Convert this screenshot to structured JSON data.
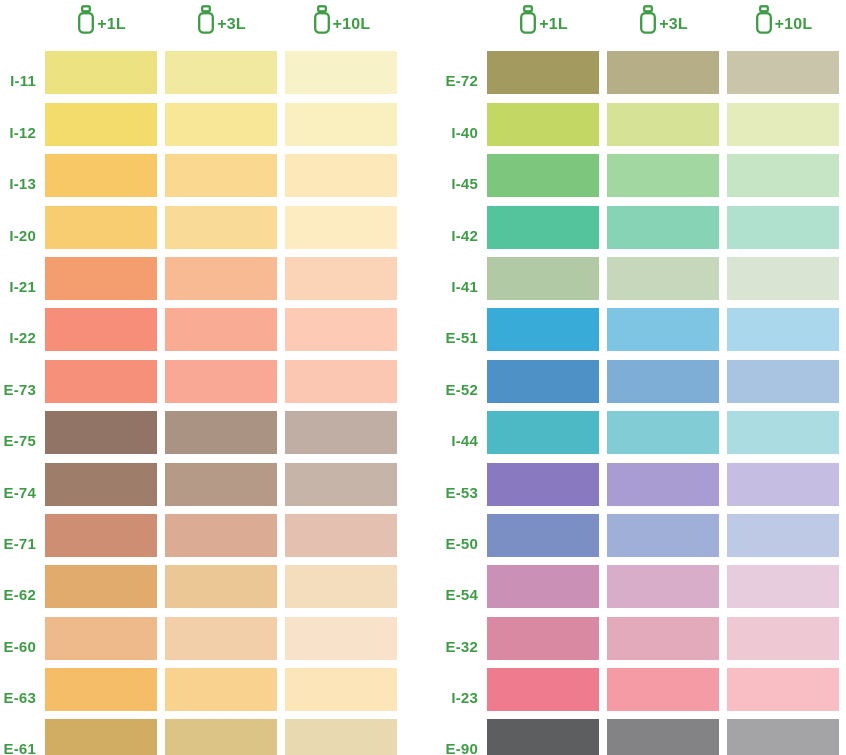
{
  "accent_green": "#3f9c46",
  "header": {
    "bottle_icon": "paint-bottle-icon",
    "columns": [
      "+1L",
      "+3L",
      "+10L"
    ]
  },
  "chart_data": {
    "type": "table",
    "title": "Paint tint dilution color chart",
    "columns": [
      "+1L",
      "+3L",
      "+10L"
    ],
    "groups": [
      {
        "rows": [
          {
            "code": "I-11",
            "colors": [
              "#ede282",
              "#f2e9a1",
              "#f7f2c8"
            ]
          },
          {
            "code": "I-12",
            "colors": [
              "#f3dc6c",
              "#f7e796",
              "#faf0bf"
            ]
          },
          {
            "code": "I-13",
            "colors": [
              "#f8c766",
              "#fad88f",
              "#fce8b8"
            ]
          },
          {
            "code": "I-20",
            "colors": [
              "#f8cd72",
              "#f9db97",
              "#fdecc2"
            ]
          },
          {
            "code": "I-21",
            "colors": [
              "#f49d6e",
              "#f8ba92",
              "#fbd4b8"
            ]
          },
          {
            "code": "I-22",
            "colors": [
              "#f78e7a",
              "#faab93",
              "#fccab5"
            ]
          },
          {
            "code": "E-73",
            "colors": [
              "#f6907a",
              "#f9a896",
              "#fcc7b2"
            ]
          },
          {
            "code": "E-75",
            "colors": [
              "#917466",
              "#ab9384",
              "#c0ada3"
            ]
          },
          {
            "code": "E-74",
            "colors": [
              "#9e7d6b",
              "#b49a87",
              "#c7b4a8"
            ]
          },
          {
            "code": "E-71",
            "colors": [
              "#cd8e73",
              "#dcab94",
              "#e3c0b0"
            ]
          },
          {
            "code": "E-62",
            "colors": [
              "#e1ab6e",
              "#eac795",
              "#f3ddbc"
            ]
          },
          {
            "code": "E-60",
            "colors": [
              "#eeba8c",
              "#f3cfa9",
              "#f8e2ca"
            ]
          },
          {
            "code": "E-63",
            "colors": [
              "#f5bd68",
              "#f8d28e",
              "#fce5b9"
            ]
          },
          {
            "code": "E-61",
            "colors": [
              "#d0ad62",
              "#dcc487",
              "#e8d9b1"
            ]
          }
        ]
      },
      {
        "rows": [
          {
            "code": "E-72",
            "colors": [
              "#a29a5e",
              "#b6ae86",
              "#c9c5aa"
            ]
          },
          {
            "code": "I-40",
            "colors": [
              "#c3d765",
              "#d6e295",
              "#e3ecba"
            ]
          },
          {
            "code": "I-45",
            "colors": [
              "#7cc77d",
              "#a3d7a2",
              "#c5e5c4"
            ]
          },
          {
            "code": "I-42",
            "colors": [
              "#54c49c",
              "#86d3b6",
              "#b0e1ce"
            ]
          },
          {
            "code": "I-41",
            "colors": [
              "#b2c9a6",
              "#c7d7bc",
              "#dae4d2"
            ]
          },
          {
            "code": "E-51",
            "colors": [
              "#39abd9",
              "#7ec4e3",
              "#abd7ec"
            ]
          },
          {
            "code": "E-52",
            "colors": [
              "#4e91c6",
              "#7eadd6",
              "#a8c4e0"
            ]
          },
          {
            "code": "I-44",
            "colors": [
              "#4db9c5",
              "#82cdd5",
              "#aadce2"
            ]
          },
          {
            "code": "E-53",
            "colors": [
              "#8979c1",
              "#a99cd2",
              "#c6bde2"
            ]
          },
          {
            "code": "E-50",
            "colors": [
              "#7b8fc5",
              "#9fafd8",
              "#bdc9e5"
            ]
          },
          {
            "code": "E-54",
            "colors": [
              "#ca90b5",
              "#d8adc9",
              "#e6ccdd"
            ]
          },
          {
            "code": "E-32",
            "colors": [
              "#d989a1",
              "#e3aabb",
              "#eec8d3"
            ]
          },
          {
            "code": "I-23",
            "colors": [
              "#ee7c8e",
              "#f49ba5",
              "#f9bdc4"
            ]
          },
          {
            "code": "E-90",
            "colors": [
              "#5d5e60",
              "#838385",
              "#a4a3a5"
            ]
          }
        ]
      }
    ]
  }
}
